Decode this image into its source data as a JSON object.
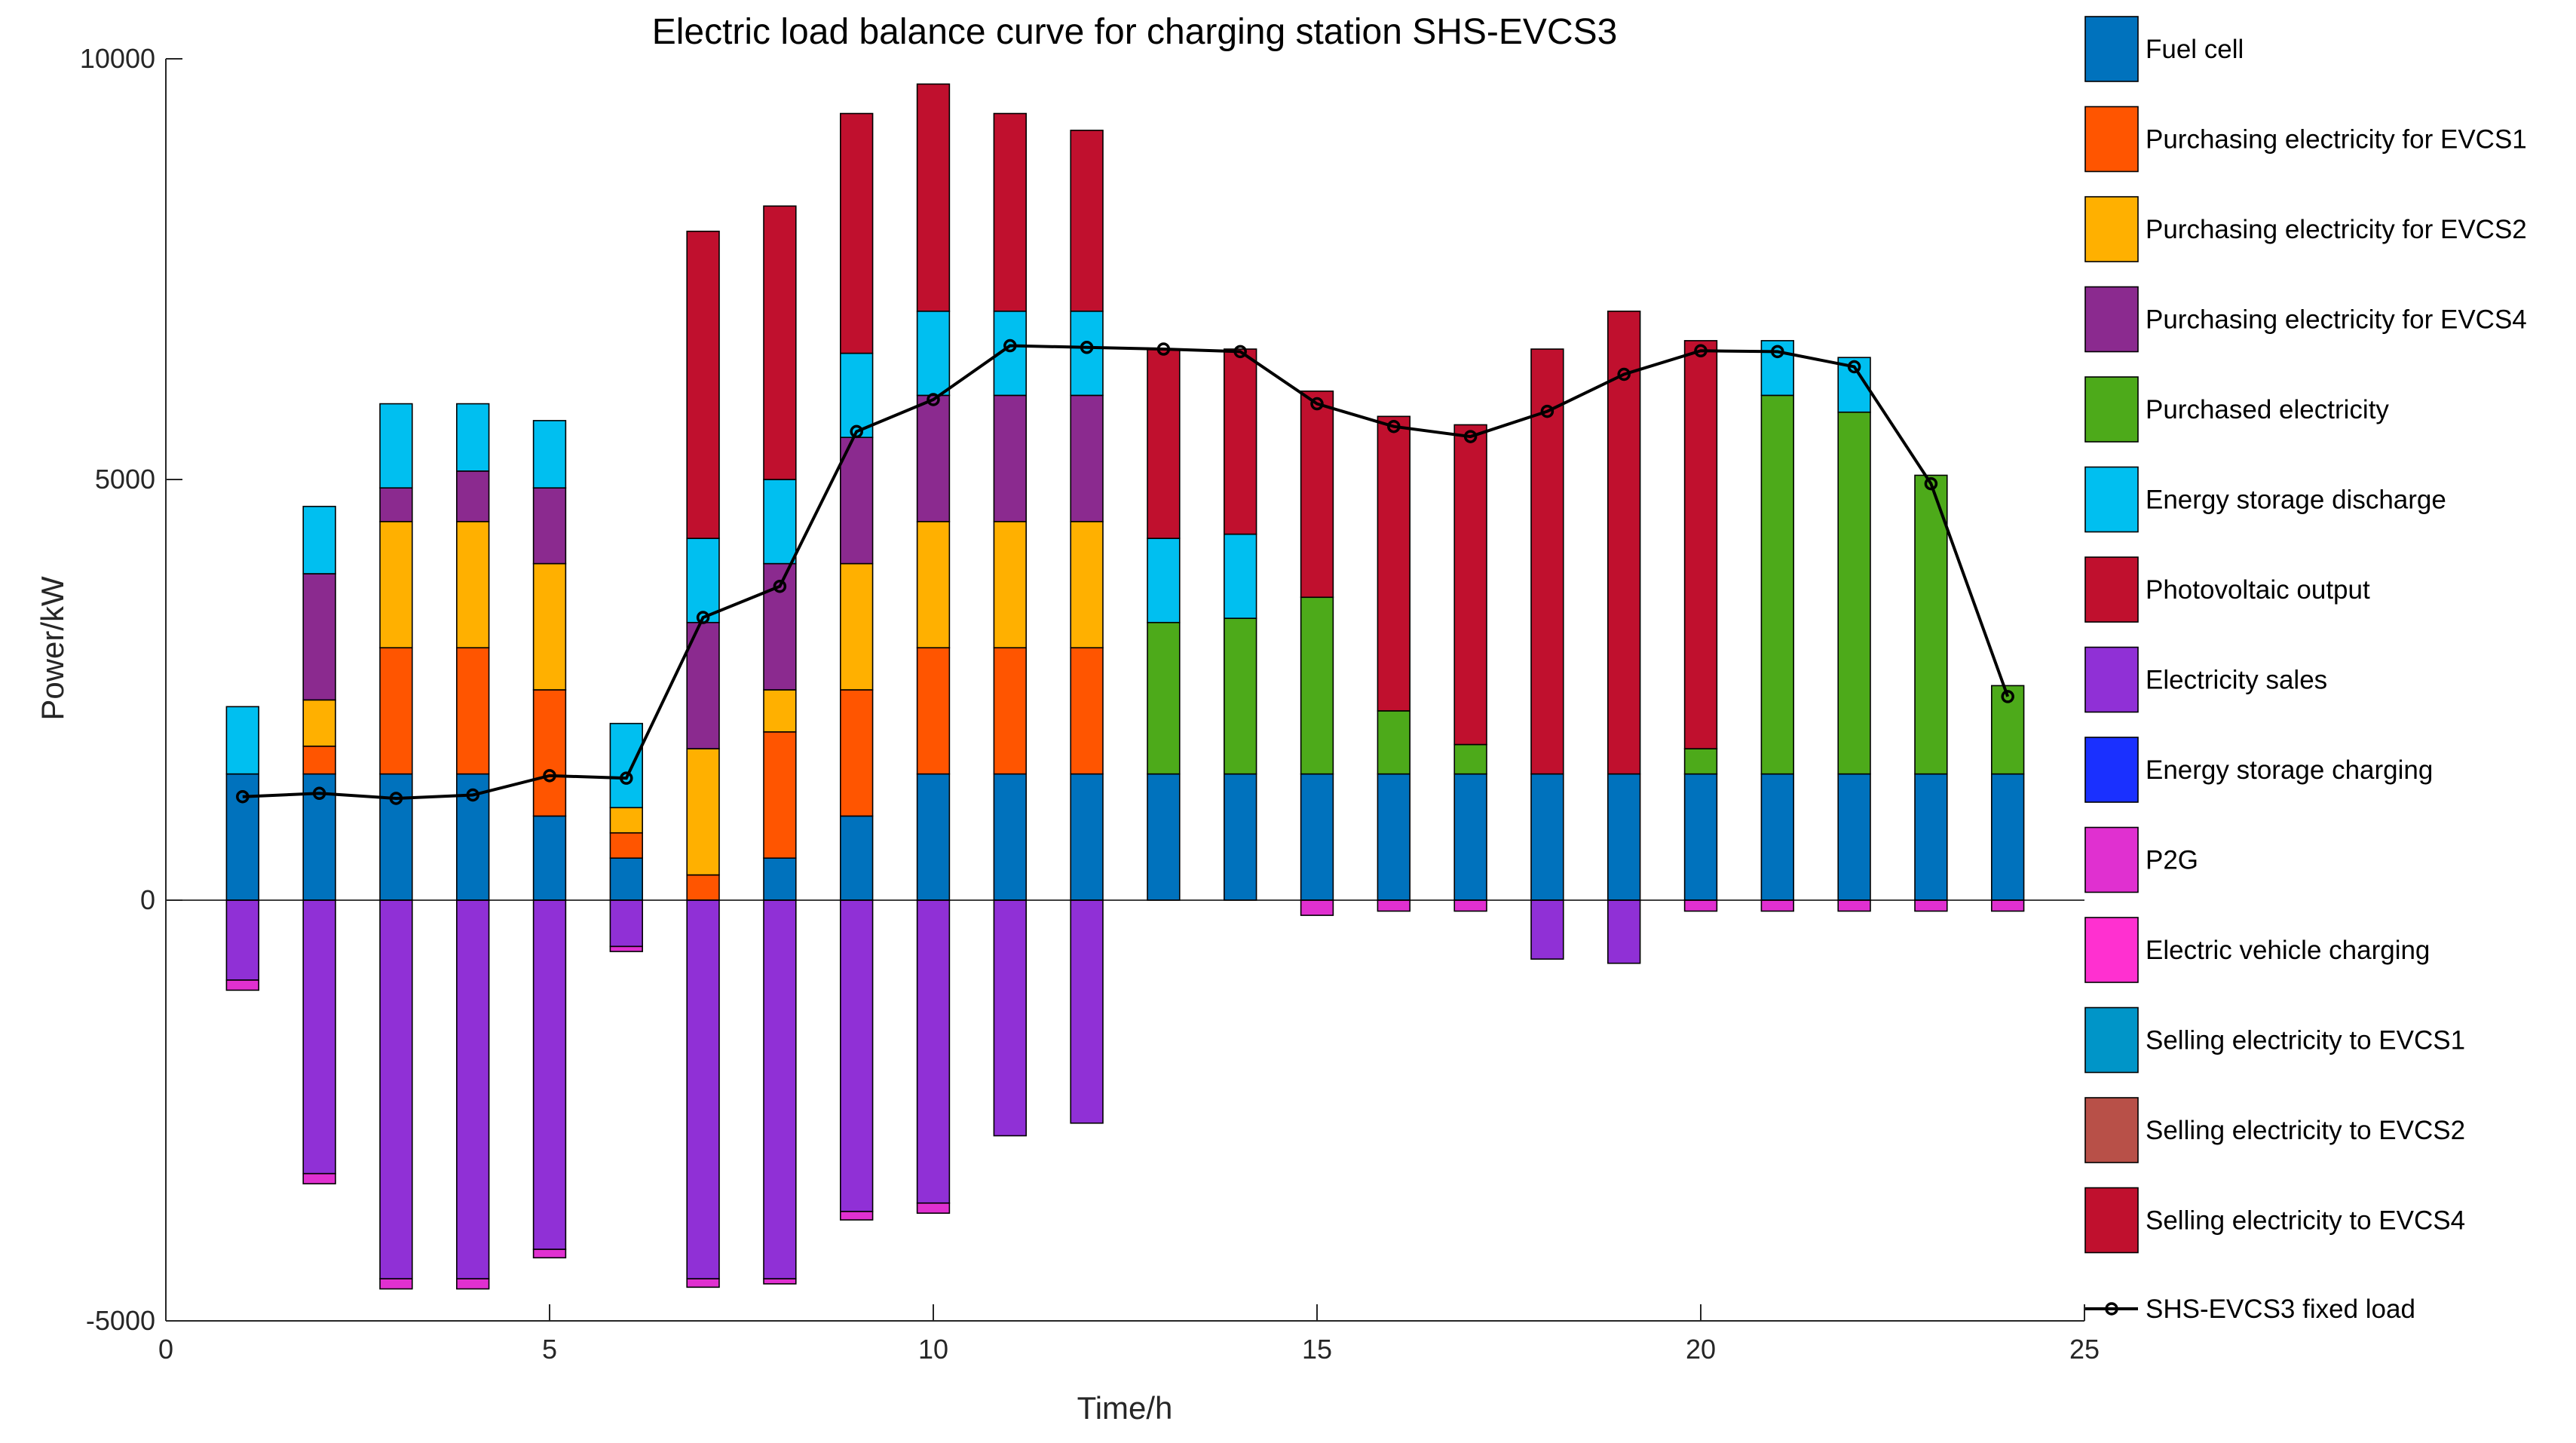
{
  "chart_data": {
    "type": "bar",
    "stacked": true,
    "title": "Electric load balance curve for charging station SHS-EVCS3",
    "xlabel": "Time/h",
    "ylabel": "Power/kW",
    "xlim": [
      0,
      25
    ],
    "ylim": [
      -5000,
      10000
    ],
    "xticks": [
      0,
      5,
      10,
      15,
      20,
      25
    ],
    "xtick_labels": [
      "0",
      "5",
      "10",
      "15",
      "20",
      "25"
    ],
    "yticks": [
      -5000,
      0,
      5000,
      10000
    ],
    "ytick_labels": [
      "-5000",
      "0",
      "5000",
      "10000"
    ],
    "x": [
      1,
      2,
      3,
      4,
      5,
      6,
      7,
      8,
      9,
      10,
      11,
      12,
      13,
      14,
      15,
      16,
      17,
      18,
      19,
      20,
      21,
      22,
      23,
      24
    ],
    "legend_position": "outside-right",
    "series": [
      {
        "name": "Fuel cell",
        "color": "#0072BD",
        "sign": "pos",
        "values": [
          1500,
          1500,
          1500,
          1500,
          1000,
          500,
          0,
          500,
          1000,
          1500,
          1500,
          1500,
          1500,
          1500,
          1500,
          1500,
          1500,
          1500,
          1500,
          1500,
          1500,
          1500,
          1500,
          1500
        ]
      },
      {
        "name": "Purchasing electricity for EVCS1",
        "color": "#FF5500",
        "sign": "pos",
        "values": [
          0,
          330,
          1500,
          1500,
          1500,
          300,
          300,
          1500,
          1500,
          1500,
          1500,
          1500,
          0,
          0,
          0,
          0,
          0,
          0,
          0,
          0,
          0,
          0,
          0,
          0
        ]
      },
      {
        "name": "Purchasing electricity for EVCS2",
        "color": "#FFB000",
        "sign": "pos",
        "values": [
          0,
          550,
          1500,
          1500,
          1500,
          300,
          1500,
          500,
          1500,
          1500,
          1500,
          1500,
          0,
          0,
          0,
          0,
          0,
          0,
          0,
          0,
          0,
          0,
          0,
          0
        ]
      },
      {
        "name": "Purchasing electricity for EVCS4",
        "color": "#8B2A8F",
        "sign": "pos",
        "values": [
          0,
          1500,
          400,
          600,
          900,
          0,
          1500,
          1500,
          1500,
          1500,
          1500,
          1500,
          0,
          0,
          0,
          0,
          0,
          0,
          0,
          0,
          0,
          0,
          0,
          0
        ]
      },
      {
        "name": "Purchased electricity",
        "color": "#4DAA1A",
        "sign": "pos",
        "values": [
          0,
          0,
          0,
          0,
          0,
          0,
          0,
          0,
          0,
          0,
          0,
          0,
          1800,
          1850,
          2100,
          750,
          350,
          0,
          0,
          300,
          4500,
          4300,
          3550,
          1050
        ]
      },
      {
        "name": "Energy storage discharge",
        "color": "#00BFF0",
        "sign": "pos",
        "values": [
          800,
          800,
          1000,
          800,
          800,
          1000,
          1000,
          1000,
          1000,
          1000,
          1000,
          1000,
          1000,
          1000,
          0,
          0,
          0,
          0,
          0,
          0,
          650,
          650,
          0,
          0
        ]
      },
      {
        "name": "Photovoltaic output",
        "color": "#C0102E",
        "sign": "pos",
        "values": [
          0,
          0,
          0,
          0,
          0,
          0,
          3650,
          3250,
          2850,
          2700,
          2350,
          2150,
          2250,
          2200,
          2450,
          3500,
          3800,
          5050,
          5500,
          4850,
          0,
          0,
          0,
          0
        ]
      },
      {
        "name": "Electricity sales",
        "color": "#9030D6",
        "sign": "neg",
        "values": [
          -950,
          -3250,
          -4500,
          -4500,
          -4150,
          -550,
          -4500,
          -4500,
          -3700,
          -3600,
          -2800,
          -2650,
          0,
          0,
          0,
          0,
          0,
          -700,
          -750,
          0,
          0,
          0,
          0,
          0
        ]
      },
      {
        "name": "Energy storage charging",
        "color": "#1A30FF",
        "sign": "neg",
        "values": [
          0,
          0,
          0,
          0,
          0,
          0,
          0,
          0,
          0,
          0,
          0,
          0,
          0,
          0,
          0,
          0,
          0,
          0,
          0,
          0,
          0,
          0,
          0,
          0
        ]
      },
      {
        "name": "P2G",
        "color": "#E030D0",
        "sign": "neg",
        "values": [
          -120,
          -120,
          -120,
          -120,
          -100,
          -60,
          -100,
          -60,
          -100,
          -120,
          0,
          0,
          0,
          0,
          -180,
          -130,
          -130,
          0,
          0,
          -130,
          -130,
          -130,
          -130,
          -130
        ]
      },
      {
        "name": "Electric vehicle charging",
        "color": "#FF30D0",
        "sign": "neg",
        "values": [
          0,
          0,
          0,
          0,
          0,
          0,
          0,
          0,
          0,
          0,
          0,
          0,
          0,
          0,
          0,
          0,
          0,
          0,
          0,
          0,
          0,
          0,
          0,
          0
        ]
      },
      {
        "name": "Selling electricity to EVCS1",
        "color": "#0095C8",
        "sign": "neg",
        "values": [
          0,
          0,
          0,
          0,
          0,
          0,
          0,
          0,
          0,
          0,
          0,
          0,
          0,
          0,
          0,
          0,
          0,
          0,
          0,
          0,
          0,
          0,
          0,
          0
        ]
      },
      {
        "name": "Selling electricity to EVCS2",
        "color": "#B85048",
        "sign": "neg",
        "values": [
          0,
          0,
          0,
          0,
          0,
          0,
          0,
          0,
          0,
          0,
          0,
          0,
          0,
          0,
          0,
          0,
          0,
          0,
          0,
          0,
          0,
          0,
          0,
          0
        ]
      },
      {
        "name": "Selling electricity to EVCS4",
        "color": "#C0102E",
        "sign": "neg",
        "values": [
          0,
          0,
          0,
          0,
          0,
          0,
          0,
          0,
          0,
          0,
          0,
          0,
          0,
          0,
          0,
          0,
          0,
          0,
          0,
          0,
          0,
          0,
          0,
          0
        ]
      }
    ],
    "line": {
      "name": "SHS-EVCS3 fixed load",
      "color": "#000000",
      "values": [
        1230,
        1270,
        1210,
        1250,
        1480,
        1450,
        3360,
        3730,
        5570,
        5950,
        6590,
        6570,
        6550,
        6520,
        5900,
        5630,
        5510,
        5810,
        6250,
        6530,
        6520,
        6340,
        4950,
        2420
      ]
    }
  }
}
